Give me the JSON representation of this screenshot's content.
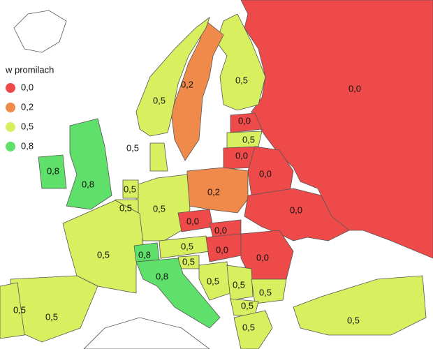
{
  "legend": {
    "title": "w promilach",
    "items": [
      {
        "label": "0,0",
        "color": "#ef4a4a"
      },
      {
        "label": "0,2",
        "color": "#f08a4b"
      },
      {
        "label": "0,5",
        "color": "#d8f060"
      },
      {
        "label": "0,8",
        "color": "#5ee06a"
      }
    ]
  },
  "regions": [
    {
      "label": "0,0"
    },
    {
      "label": "0,5"
    },
    {
      "label": "0,2"
    },
    {
      "label": "0,5"
    },
    {
      "label": "0,0"
    },
    {
      "label": "0,5"
    },
    {
      "label": "0,0"
    },
    {
      "label": "0,0"
    },
    {
      "label": "0,2"
    },
    {
      "label": "0,0"
    },
    {
      "label": "0,5"
    },
    {
      "label": "0,5"
    },
    {
      "label": "0,8"
    },
    {
      "label": "0,8"
    },
    {
      "label": "0,5"
    },
    {
      "label": "0,5"
    },
    {
      "label": "0,5"
    },
    {
      "label": "0,8"
    },
    {
      "label": "0,5"
    },
    {
      "label": "0,0"
    },
    {
      "label": "0,0"
    },
    {
      "label": "0,0"
    },
    {
      "label": "0,5"
    },
    {
      "label": "0,0"
    },
    {
      "label": "0,8"
    },
    {
      "label": "0,5"
    },
    {
      "label": "0,5"
    },
    {
      "label": "0,5"
    },
    {
      "label": "0,5"
    },
    {
      "label": "0,5"
    },
    {
      "label": "0,5"
    },
    {
      "label": "0,5"
    },
    {
      "label": "0,5"
    }
  ]
}
